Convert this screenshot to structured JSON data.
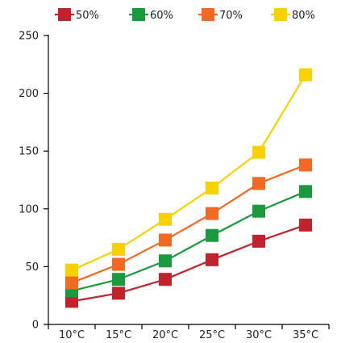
{
  "chart_data": {
    "type": "line",
    "title": "",
    "xlabel": "",
    "ylabel": "",
    "categories": [
      "10°C",
      "15°C",
      "20°C",
      "25°C",
      "30°C",
      "35°C"
    ],
    "ylim": [
      0,
      250
    ],
    "yticks": [
      0,
      50,
      100,
      150,
      200,
      250
    ],
    "grid": false,
    "legend_position": "top",
    "series": [
      {
        "name": "50%",
        "color": "#c0232b",
        "values": [
          20,
          27,
          39,
          56,
          72,
          86
        ]
      },
      {
        "name": "60%",
        "color": "#1a9a3c",
        "values": [
          29,
          39,
          55,
          77,
          98,
          115
        ]
      },
      {
        "name": "70%",
        "color": "#f26a22",
        "values": [
          36,
          52,
          73,
          96,
          122,
          138
        ]
      },
      {
        "name": "80%",
        "color": "#fad100",
        "values": [
          47,
          65,
          91,
          118,
          149,
          216
        ]
      }
    ]
  }
}
